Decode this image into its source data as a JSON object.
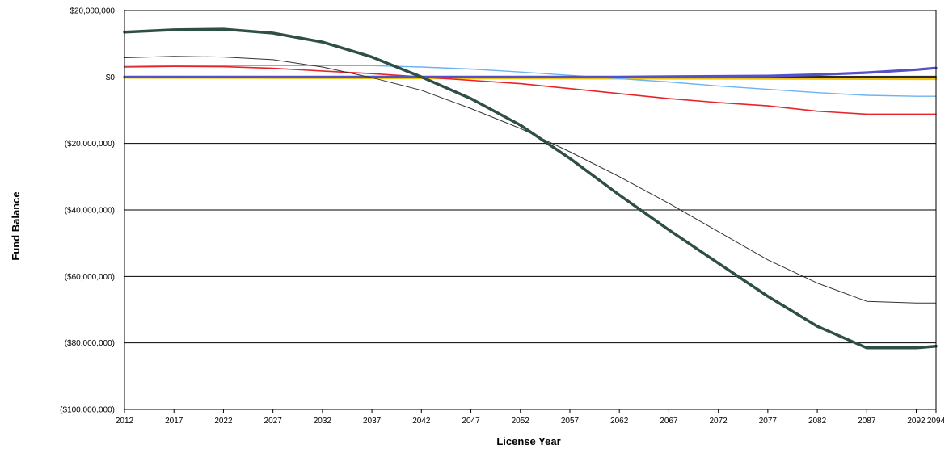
{
  "chart_data": {
    "type": "line",
    "title": "",
    "xlabel": "License Year",
    "ylabel": "Fund Balance",
    "xlim": [
      2012,
      2094
    ],
    "ylim": [
      -100000000,
      20000000
    ],
    "grid": true,
    "x_tick_labels": [
      "2012",
      "2017",
      "2022",
      "2027",
      "2032",
      "2037",
      "2042",
      "2047",
      "2052",
      "2057",
      "2062",
      "2067",
      "2072",
      "2077",
      "2082",
      "2087",
      "2092",
      "2094"
    ],
    "y_tick_labels": [
      "$20,000,000",
      "$0",
      "($20,000,000)",
      "($40,000,000)",
      "($60,000,000)",
      "($80,000,000)",
      "($100,000,000)"
    ],
    "series": [
      {
        "color": "#2f4f46",
        "x": [
          2012,
          2017,
          2022,
          2027,
          2032,
          2037,
          2042,
          2047,
          2052,
          2057,
          2062,
          2067,
          2072,
          2077,
          2082,
          2087,
          2092,
          2094
        ],
        "values": [
          13500000,
          14200000,
          14400000,
          13200000,
          10500000,
          6000000,
          0,
          -6500000,
          -14500000,
          -24500000,
          -35500000,
          -46000000,
          -56000000,
          -66000000,
          -75000000,
          -81500000,
          -81500000,
          -81000000
        ]
      },
      {
        "color": "#333333",
        "x": [
          2012,
          2017,
          2022,
          2027,
          2032,
          2037,
          2042,
          2047,
          2052,
          2057,
          2062,
          2067,
          2072,
          2077,
          2082,
          2087,
          2092,
          2094
        ],
        "values": [
          5800000,
          6200000,
          6000000,
          5200000,
          3000000,
          -200000,
          -4000000,
          -9500000,
          -15500000,
          -22500000,
          -30000000,
          -38000000,
          -46500000,
          -55000000,
          -62000000,
          -67500000,
          -68000000,
          -68000000
        ]
      },
      {
        "color": "#e8242a",
        "x": [
          2012,
          2017,
          2022,
          2027,
          2032,
          2037,
          2042,
          2047,
          2052,
          2057,
          2062,
          2067,
          2072,
          2077,
          2082,
          2087,
          2092,
          2094
        ],
        "values": [
          3000000,
          3200000,
          3100000,
          2600000,
          1800000,
          1000000,
          0,
          -1000000,
          -2000000,
          -3500000,
          -5000000,
          -6500000,
          -7700000,
          -8700000,
          -10300000,
          -11200000,
          -11200000,
          -11200000
        ]
      },
      {
        "color": "#6db3f2",
        "x": [
          2012,
          2017,
          2022,
          2027,
          2032,
          2037,
          2042,
          2047,
          2052,
          2057,
          2062,
          2067,
          2072,
          2077,
          2082,
          2087,
          2092,
          2094
        ],
        "values": [
          3200000,
          3400000,
          3400000,
          3400000,
          3400000,
          3400000,
          3000000,
          2400000,
          1500000,
          500000,
          -500000,
          -1500000,
          -2700000,
          -3700000,
          -4700000,
          -5500000,
          -5800000,
          -5800000
        ]
      },
      {
        "color": "#5451c8",
        "x": [
          2012,
          2017,
          2022,
          2027,
          2032,
          2037,
          2042,
          2047,
          2052,
          2057,
          2062,
          2067,
          2072,
          2077,
          2082,
          2087,
          2092,
          2094
        ],
        "values": [
          0,
          0,
          0,
          0,
          0,
          0,
          0,
          0,
          0,
          0,
          0,
          100000,
          200000,
          300000,
          700000,
          1300000,
          2200000,
          2700000
        ]
      },
      {
        "color": "#f2c40f",
        "x": [
          2012,
          2094
        ],
        "values": [
          -200000,
          -600000
        ]
      },
      {
        "color": "#2a2a2a",
        "x": [
          2012,
          2094
        ],
        "values": [
          -100000,
          100000
        ]
      }
    ]
  }
}
